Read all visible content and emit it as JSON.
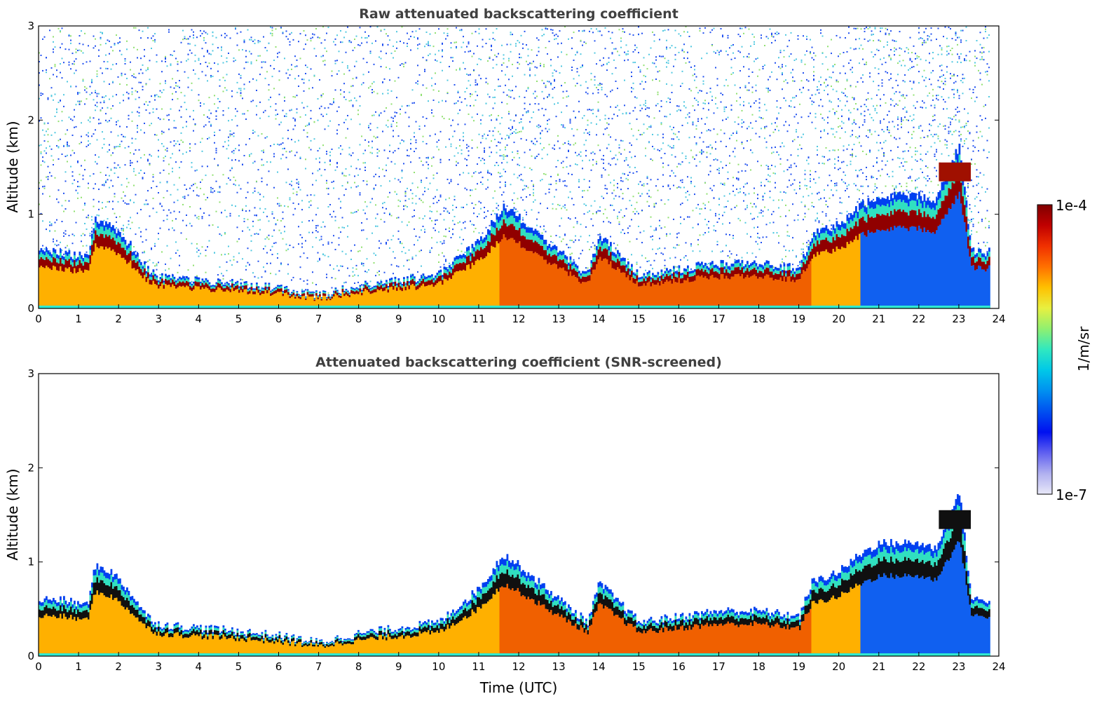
{
  "chart_data": [
    {
      "type": "heatmap",
      "title": "Raw attenuated backscattering coefficient",
      "xlabel": "",
      "ylabel": "Altitude (km)",
      "xlim": [
        0,
        24
      ],
      "ylim": [
        0,
        3
      ],
      "xticks": [
        "0",
        "1",
        "2",
        "3",
        "4",
        "5",
        "6",
        "7",
        "8",
        "9",
        "10",
        "11",
        "12",
        "13",
        "14",
        "15",
        "16",
        "17",
        "18",
        "19",
        "20",
        "21",
        "22",
        "23",
        "24"
      ],
      "yticks": [
        "0",
        "1",
        "2",
        "3"
      ],
      "noise_above_boundary_layer": true,
      "layers": [
        {
          "name": "boundary-layer-top",
          "x": [
            0,
            0.5,
            1.2,
            1.4,
            1.8,
            2.3,
            2.7,
            3,
            4,
            5,
            6,
            7,
            8,
            9,
            10,
            11,
            11.6,
            12,
            13,
            13.7,
            14,
            15,
            16,
            17,
            18,
            19,
            19.3,
            20,
            20.5,
            21,
            22,
            22.4,
            23,
            23.3,
            23.8
          ],
          "y": [
            0.5,
            0.5,
            0.45,
            0.8,
            0.75,
            0.55,
            0.35,
            0.28,
            0.25,
            0.22,
            0.18,
            0.12,
            0.2,
            0.25,
            0.3,
            0.6,
            0.9,
            0.8,
            0.5,
            0.3,
            0.65,
            0.3,
            0.35,
            0.4,
            0.4,
            0.35,
            0.65,
            0.75,
            0.9,
            1.0,
            1.0,
            0.95,
            1.45,
            0.5,
            0.5
          ]
        },
        {
          "name": "elevated-cloud",
          "x": [
            22.5,
            23.3
          ],
          "y": [
            1.45,
            1.45
          ]
        }
      ]
    },
    {
      "type": "heatmap",
      "title": "Attenuated backscattering coefficient (SNR-screened)",
      "xlabel": "Time (UTC)",
      "ylabel": "Altitude (km)",
      "xlim": [
        0,
        24
      ],
      "ylim": [
        0,
        3
      ],
      "xticks": [
        "0",
        "1",
        "2",
        "3",
        "4",
        "5",
        "6",
        "7",
        "8",
        "9",
        "10",
        "11",
        "12",
        "13",
        "14",
        "15",
        "16",
        "17",
        "18",
        "19",
        "20",
        "21",
        "22",
        "23",
        "24"
      ],
      "yticks": [
        "0",
        "1",
        "2",
        "3"
      ],
      "noise_above_boundary_layer": false
    }
  ],
  "colorbar": {
    "label": "1/m/sr",
    "max_label": "1e-4",
    "min_label": "1e-7",
    "colors": [
      "#e8e8f8",
      "#b0b0f0",
      "#6060f0",
      "#0010f0",
      "#0050f0",
      "#0090f0",
      "#00c8e8",
      "#30e8c0",
      "#90f070",
      "#e8f040",
      "#ffc000",
      "#ff7000",
      "#f03000",
      "#c00000",
      "#800000"
    ]
  }
}
